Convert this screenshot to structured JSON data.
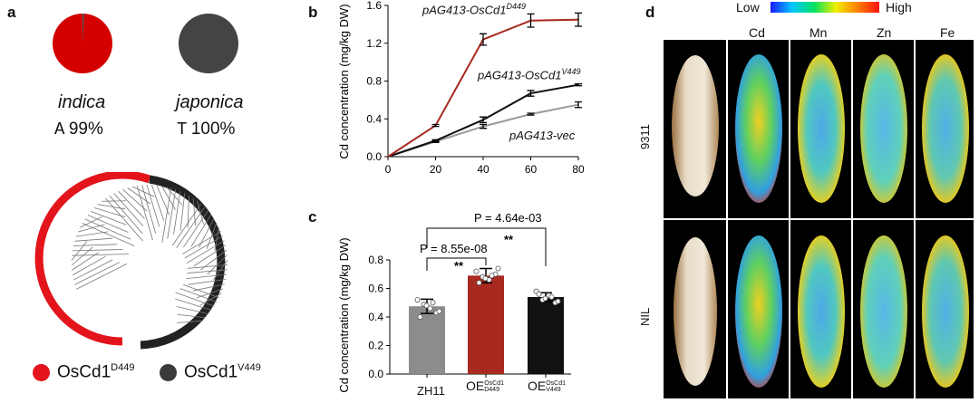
{
  "panels": {
    "a": "a",
    "b": "b",
    "c": "c",
    "d": "d"
  },
  "panel_a": {
    "pies": [
      {
        "name": "indica",
        "allele": "A",
        "percent": "99%",
        "color": "#d40000"
      },
      {
        "name": "japonica",
        "allele": "T",
        "percent": "100%",
        "color": "#444444"
      }
    ],
    "legend": [
      {
        "label": "OsCd1",
        "sup": "D449",
        "color": "#e3141b"
      },
      {
        "label": "OsCd1",
        "sup": "V449",
        "color": "#3a3a3a"
      }
    ]
  },
  "chart_data": [
    {
      "type": "line",
      "ylabel": "Cd concentration (mg/kg DW)",
      "xlabel": "",
      "x": [
        0,
        20,
        40,
        60,
        80
      ],
      "xlim": [
        0,
        80
      ],
      "ylim": [
        0,
        1.6
      ],
      "yticks": [
        "0.0",
        "0.4",
        "0.8",
        "1.2",
        "1.6"
      ],
      "xticks": [
        "0",
        "20",
        "40",
        "60",
        "80"
      ],
      "series": [
        {
          "name": "pAG413-OsCd1",
          "sup": "D449",
          "color": "#a8291f",
          "values": [
            0,
            0.33,
            1.24,
            1.44,
            1.45
          ],
          "err": [
            0,
            0.01,
            0.06,
            0.07,
            0.07
          ]
        },
        {
          "name": "pAG413-OsCd1",
          "sup": "V449",
          "color": "#111111",
          "values": [
            0,
            0.17,
            0.39,
            0.67,
            0.76
          ],
          "err": [
            0,
            0.01,
            0.03,
            0.03,
            0.01
          ]
        },
        {
          "name": "pAG413-vec",
          "sup": "",
          "color": "#9a9a9a",
          "values": [
            0,
            0.16,
            0.32,
            0.45,
            0.55
          ],
          "err": [
            0,
            0.01,
            0.02,
            0.01,
            0.03
          ]
        }
      ]
    },
    {
      "type": "bar",
      "ylabel": "Cd concentration (mg/kg DW)",
      "ylim": [
        0,
        0.8
      ],
      "yticks": [
        "0.0",
        "0.2",
        "0.4",
        "0.6",
        "0.8"
      ],
      "categories": [
        "ZH11",
        "OE",
        "OE"
      ],
      "category_sups": [
        [
          "",
          ""
        ],
        [
          "OsCd1",
          "D449"
        ],
        [
          "OsCd1",
          "V449"
        ]
      ],
      "values": [
        0.475,
        0.69,
        0.54
      ],
      "err": [
        0.05,
        0.05,
        0.03
      ],
      "colors": [
        "#8c8c8c",
        "#a8291f",
        "#111111"
      ],
      "points": [
        [
          0.52,
          0.49,
          0.46,
          0.43,
          0.4,
          0.48,
          0.5,
          0.44
        ],
        [
          0.72,
          0.68,
          0.66,
          0.7,
          0.64,
          0.67,
          0.69,
          0.74
        ],
        [
          0.58,
          0.52,
          0.55,
          0.5,
          0.56,
          0.53,
          0.54,
          0.51
        ]
      ],
      "comparisons": [
        {
          "label": "P = 8.55e-08",
          "stars": "**"
        },
        {
          "label": "P = 4.64e-03",
          "stars": "**"
        }
      ]
    }
  ],
  "panel_d": {
    "scale_low": "Low",
    "scale_high": "High",
    "elements": [
      "Cd",
      "Mn",
      "Zn",
      "Fe"
    ],
    "rows": [
      "9311",
      "NIL"
    ]
  }
}
